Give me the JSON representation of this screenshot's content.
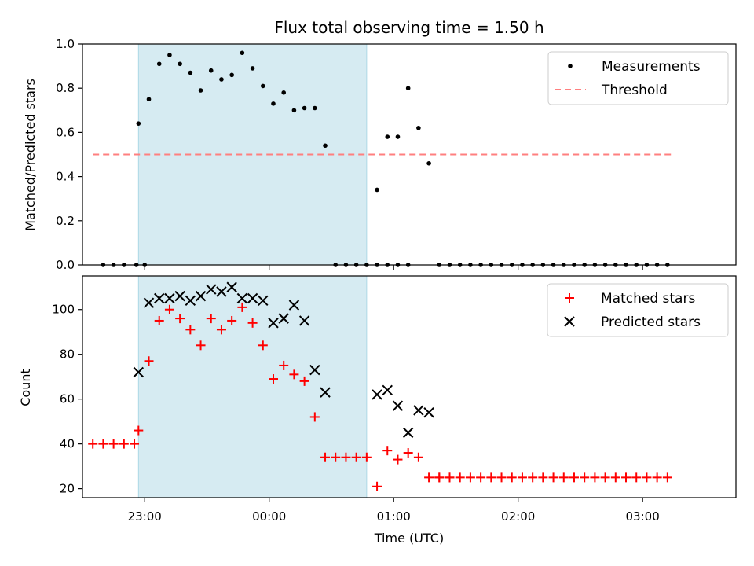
{
  "chart_data": [
    {
      "type": "scatter",
      "title": "Flux total observing time = 1.50 h",
      "xlabel": "",
      "ylabel": "Matched/Predicted stars",
      "xlim": [
        "22:30",
        "03:45"
      ],
      "ylim": [
        0,
        1.0
      ],
      "yticks": [
        "0.0",
        "0.2",
        "0.4",
        "0.6",
        "0.8",
        "1.0"
      ],
      "highlight_span": {
        "start": "22:57",
        "end": "00:47",
        "color": "#add8e6"
      },
      "legend_position": "top-right",
      "series": [
        {
          "name": "Measurements",
          "marker": "dot",
          "color": "#000000",
          "x": [
            "22:40",
            "22:45",
            "22:50",
            "22:56",
            "23:00",
            "22:57",
            "23:02",
            "23:07",
            "23:12",
            "23:17",
            "23:22",
            "23:27",
            "23:32",
            "23:37",
            "23:42",
            "23:47",
            "23:52",
            "23:57",
            "00:02",
            "00:07",
            "00:12",
            "00:17",
            "00:22",
            "00:27",
            "00:32",
            "00:37",
            "00:42",
            "00:47",
            "00:52",
            "00:57",
            "01:02",
            "01:07",
            "01:12",
            "01:17",
            "01:22",
            "01:27",
            "01:32",
            "01:37",
            "01:42",
            "01:47",
            "01:52",
            "01:57",
            "02:02",
            "02:07",
            "02:12",
            "02:17",
            "02:22",
            "02:27",
            "02:32",
            "02:37",
            "02:42",
            "02:47",
            "02:52",
            "02:57",
            "03:02",
            "03:07",
            "03:12",
            "00:52",
            "00:57",
            "01:02",
            "01:07"
          ],
          "y": [
            0,
            0,
            0,
            0,
            0,
            0.64,
            0.75,
            0.91,
            0.95,
            0.91,
            0.87,
            0.79,
            0.88,
            0.84,
            0.86,
            0.96,
            0.89,
            0.81,
            0.73,
            0.78,
            0.7,
            0.71,
            0.71,
            0.54,
            0,
            0,
            0,
            0,
            0.34,
            0.58,
            0.58,
            0.8,
            0.62,
            0.46,
            0,
            0,
            0,
            0,
            0,
            0,
            0,
            0,
            0,
            0,
            0,
            0,
            0,
            0,
            0,
            0,
            0,
            0,
            0,
            0,
            0,
            0,
            0,
            0,
            0,
            0,
            0
          ]
        },
        {
          "name": "Threshold",
          "marker": "dashed-line",
          "color": "#ff7f7f",
          "x": [
            "22:35",
            "03:15"
          ],
          "y": [
            0.5,
            0.5
          ]
        }
      ]
    },
    {
      "type": "scatter",
      "title": "",
      "xlabel": "Time (UTC)",
      "ylabel": "Count",
      "xlim": [
        "22:30",
        "03:45"
      ],
      "ylim": [
        16,
        115
      ],
      "xticks": [
        "23:00",
        "00:00",
        "01:00",
        "02:00",
        "03:00"
      ],
      "yticks": [
        "20",
        "40",
        "60",
        "80",
        "100"
      ],
      "highlight_span": {
        "start": "22:57",
        "end": "00:47",
        "color": "#add8e6"
      },
      "legend_position": "top-right",
      "series": [
        {
          "name": "Matched stars",
          "marker": "plus",
          "color": "#ff0000",
          "x": [
            "22:35",
            "22:40",
            "22:45",
            "22:50",
            "22:55",
            "22:57",
            "23:02",
            "23:07",
            "23:12",
            "23:17",
            "23:22",
            "23:27",
            "23:32",
            "23:37",
            "23:42",
            "23:47",
            "23:52",
            "23:57",
            "00:02",
            "00:07",
            "00:12",
            "00:17",
            "00:22",
            "00:27",
            "00:32",
            "00:37",
            "00:42",
            "00:47",
            "00:52",
            "00:57",
            "01:02",
            "01:07",
            "01:12",
            "01:17",
            "01:22",
            "01:27",
            "01:32",
            "01:37",
            "01:42",
            "01:47",
            "01:52",
            "01:57",
            "02:02",
            "02:07",
            "02:12",
            "02:17",
            "02:22",
            "02:27",
            "02:32",
            "02:37",
            "02:42",
            "02:47",
            "02:52",
            "02:57",
            "03:02",
            "03:07",
            "03:12",
            "01:22",
            "01:27"
          ],
          "y": [
            40,
            40,
            40,
            40,
            40,
            46,
            77,
            95,
            100,
            96,
            91,
            84,
            96,
            91,
            95,
            101,
            94,
            84,
            69,
            75,
            71,
            68,
            52,
            34,
            34,
            34,
            34,
            34,
            21,
            37,
            33,
            36,
            34,
            25,
            25,
            25,
            25,
            25,
            25,
            25,
            25,
            25,
            25,
            25,
            25,
            25,
            25,
            25,
            25,
            25,
            25,
            25,
            25,
            25,
            25,
            25,
            25,
            25,
            25
          ]
        },
        {
          "name": "Predicted stars",
          "marker": "x",
          "color": "#000000",
          "x": [
            "22:57",
            "23:02",
            "23:07",
            "23:12",
            "23:17",
            "23:22",
            "23:27",
            "23:32",
            "23:37",
            "23:42",
            "23:47",
            "23:52",
            "23:57",
            "00:02",
            "00:07",
            "00:12",
            "00:17",
            "00:22",
            "00:27",
            "00:52",
            "00:57",
            "01:02",
            "01:07",
            "01:12",
            "01:17"
          ],
          "y": [
            72,
            103,
            105,
            105,
            106,
            104,
            106,
            109,
            108,
            110,
            105,
            105,
            104,
            94,
            96,
            102,
            95,
            73,
            63,
            62,
            64,
            57,
            45,
            55,
            54
          ]
        }
      ]
    }
  ]
}
